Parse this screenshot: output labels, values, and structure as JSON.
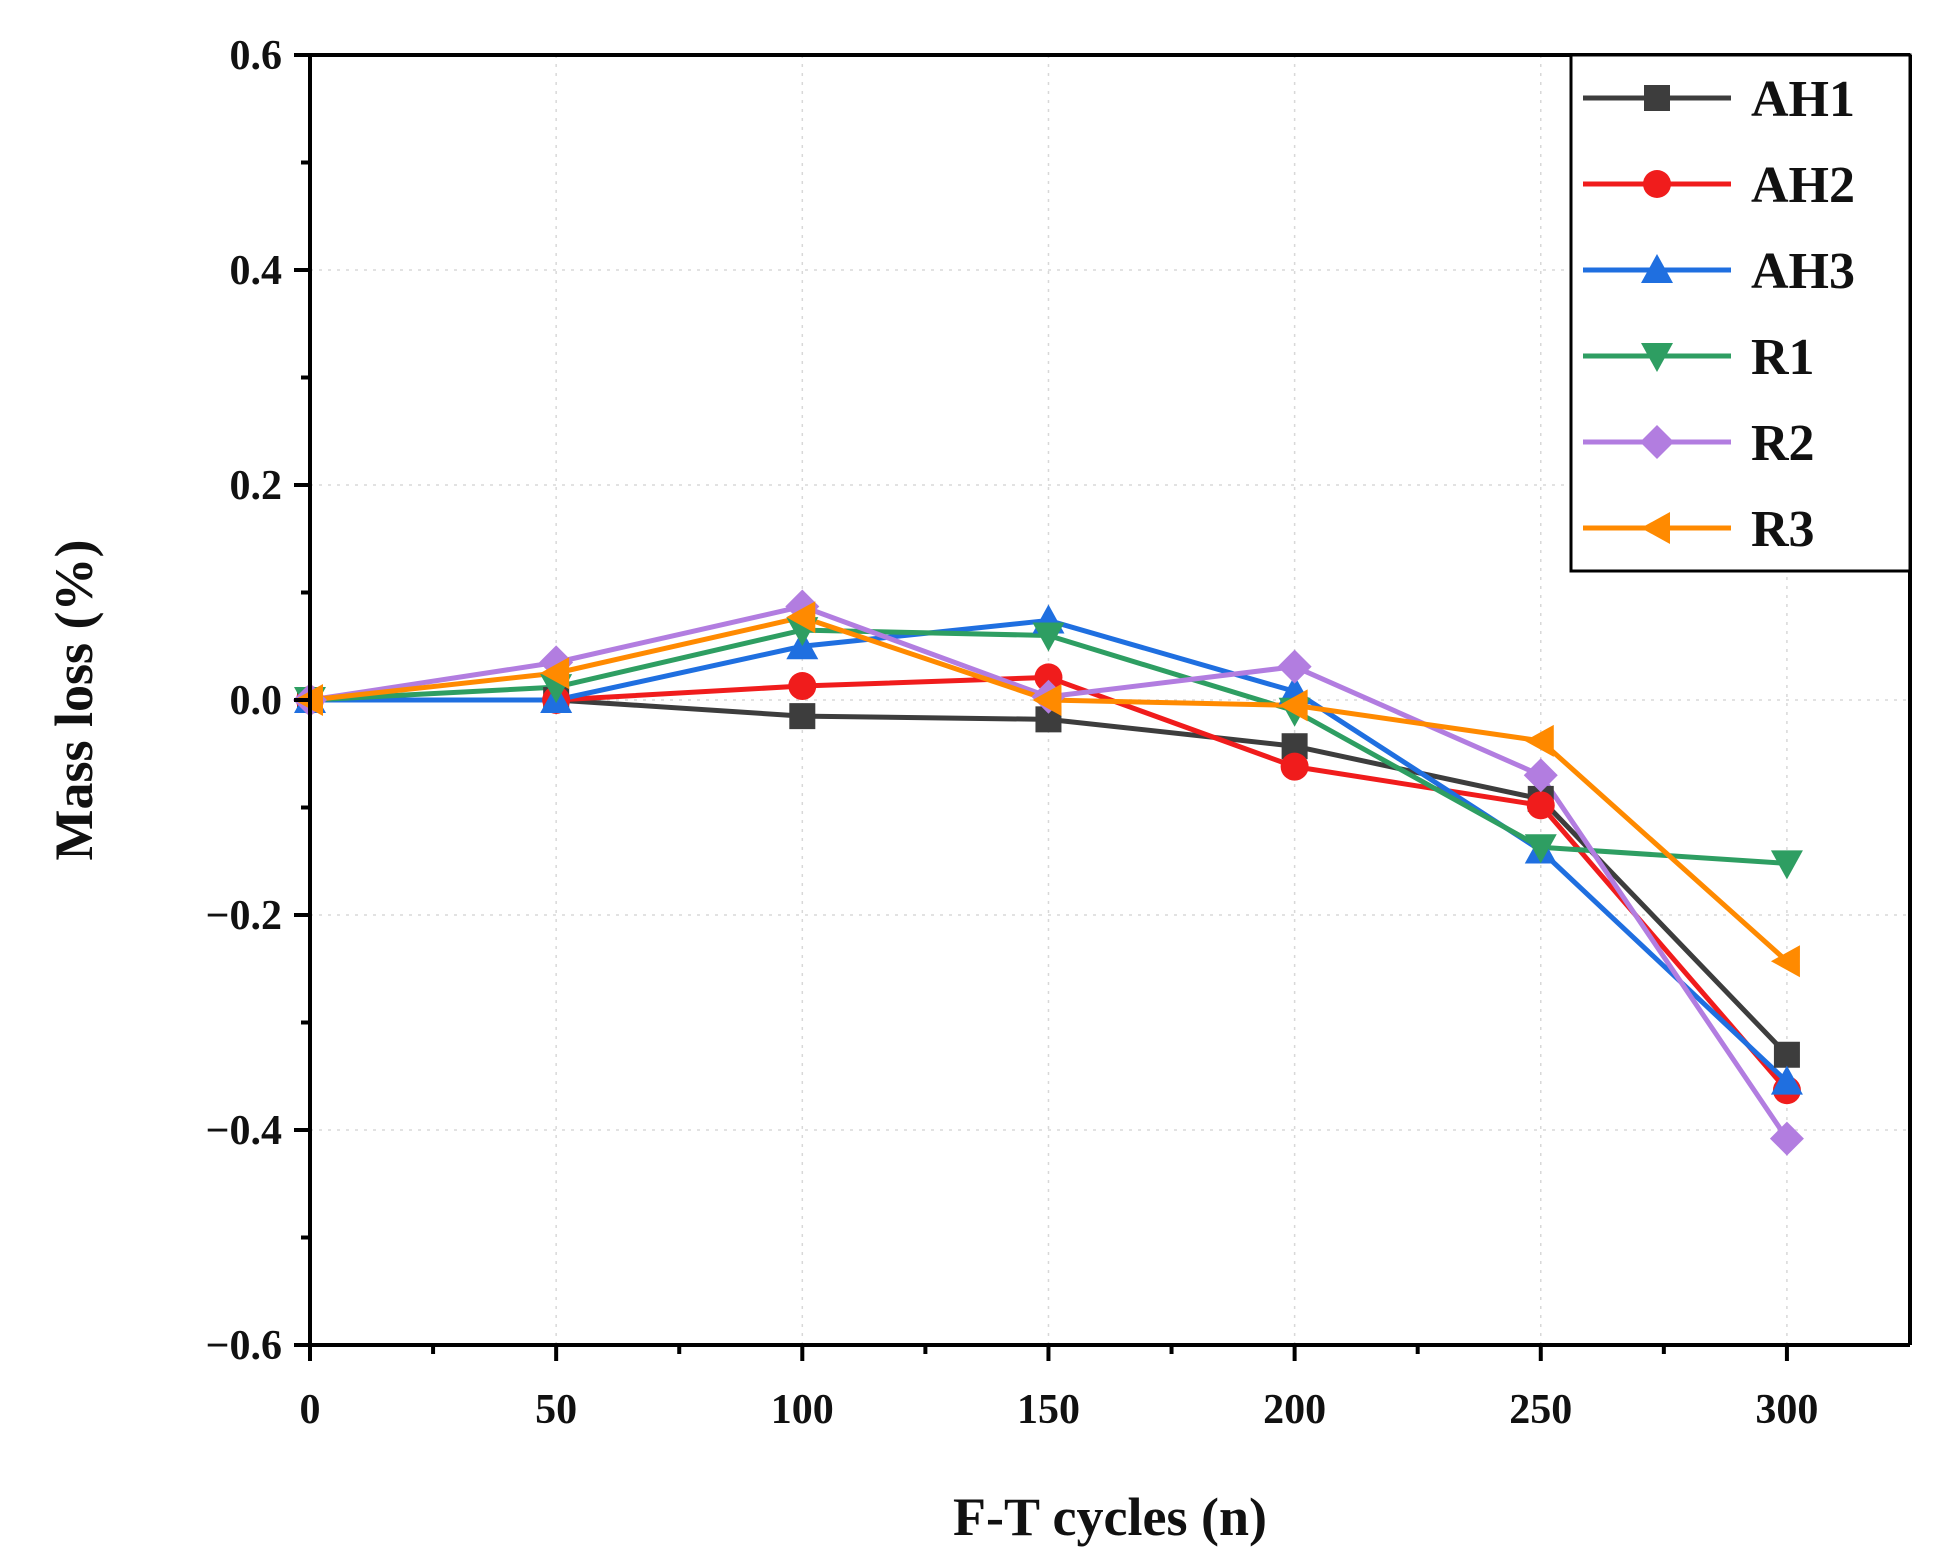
{
  "chart_data": {
    "type": "line",
    "title": "",
    "xlabel": "F-T cycles (n)",
    "ylabel": "Mass loss (%)",
    "x": [
      0,
      50,
      100,
      150,
      200,
      250,
      300
    ],
    "xlim": [
      0,
      325
    ],
    "ylim": [
      -0.6,
      0.6
    ],
    "x_ticks": [
      0,
      50,
      100,
      150,
      200,
      250,
      300
    ],
    "x_tick_labels": [
      "0",
      "50",
      "100",
      "150",
      "200",
      "250",
      "300"
    ],
    "y_ticks": [
      -0.6,
      -0.4,
      -0.2,
      0.0,
      0.2,
      0.4,
      0.6
    ],
    "y_tick_labels": [
      "−0.6",
      "−0.4",
      "−0.2",
      "0.0",
      "0.2",
      "0.4",
      "0.6"
    ],
    "grid": true,
    "legend_position": "top-right",
    "series": [
      {
        "name": "AH1",
        "color": "#3d3d3d",
        "marker": "square",
        "values": [
          0,
          0.0,
          -0.015,
          -0.018,
          -0.043,
          -0.092,
          -0.33
        ]
      },
      {
        "name": "AH2",
        "color": "#f01c1c",
        "marker": "circle",
        "values": [
          0,
          0.0,
          0.013,
          0.021,
          -0.062,
          -0.098,
          -0.363
        ]
      },
      {
        "name": "AH3",
        "color": "#1f6fe0",
        "marker": "triangle-up",
        "values": [
          0,
          0.0,
          0.05,
          0.074,
          0.008,
          -0.14,
          -0.355
        ]
      },
      {
        "name": "R1",
        "color": "#2e9e62",
        "marker": "triangle-down",
        "values": [
          0,
          0.012,
          0.065,
          0.06,
          -0.01,
          -0.137,
          -0.152
        ]
      },
      {
        "name": "R2",
        "color": "#b27de0",
        "marker": "diamond",
        "values": [
          0,
          0.035,
          0.087,
          0.003,
          0.031,
          -0.07,
          -0.408
        ]
      },
      {
        "name": "R3",
        "color": "#ff8a00",
        "marker": "triangle-left",
        "values": [
          0,
          0.025,
          0.077,
          0.0,
          -0.005,
          -0.038,
          -0.243
        ]
      }
    ]
  }
}
